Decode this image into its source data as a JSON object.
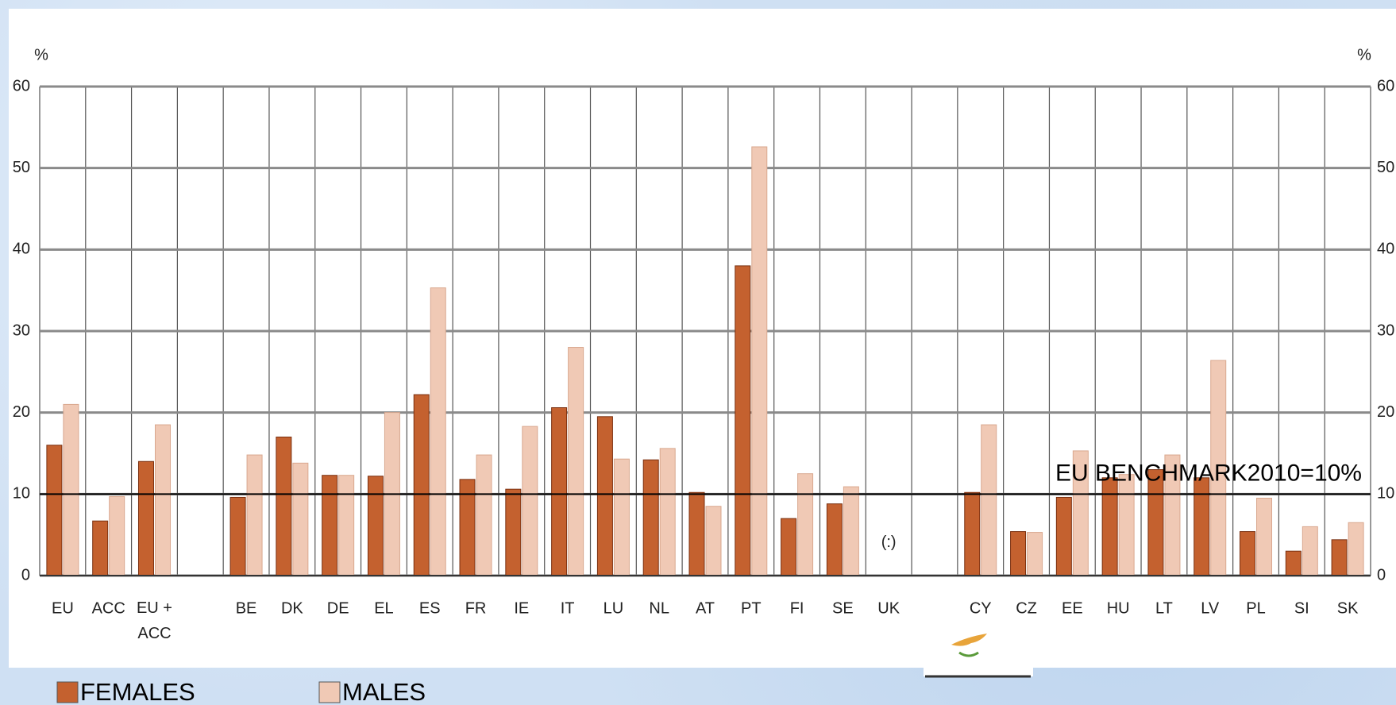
{
  "chart_data": {
    "type": "bar",
    "categories": [
      "EU",
      "ACC",
      "EU + ACC",
      null,
      "BE",
      "DK",
      "DE",
      "EL",
      "ES",
      "FR",
      "IE",
      "IT",
      "LU",
      "NL",
      "AT",
      "PT",
      "FI",
      "SE",
      "UK",
      null,
      "CY",
      "CZ",
      "EE",
      "HU",
      "LT",
      "LV",
      "PL",
      "SI",
      "SK"
    ],
    "series": [
      {
        "name": "FEMALES",
        "color": "#c4612f",
        "values": [
          16,
          6.7,
          14,
          null,
          9.6,
          17,
          12.3,
          12.2,
          22.2,
          11.8,
          10.6,
          20.6,
          19.5,
          14.2,
          10.2,
          38,
          7,
          8.8,
          null,
          null,
          10.2,
          5.4,
          9.6,
          12,
          13,
          12,
          5.4,
          3,
          4.4
        ]
      },
      {
        "name": "MALES",
        "color": "#f0c9b5",
        "values": [
          21,
          9.7,
          18.5,
          null,
          14.8,
          13.8,
          12.3,
          20,
          35.3,
          14.8,
          18.3,
          28,
          14.3,
          15.6,
          8.5,
          52.6,
          12.5,
          10.9,
          null,
          null,
          18.5,
          5.3,
          15.3,
          12.4,
          14.8,
          26.4,
          9.5,
          6,
          6.5
        ]
      }
    ],
    "y_label": "%",
    "ylim": [
      0,
      60
    ],
    "yticks": [
      0,
      10,
      20,
      30,
      40,
      50,
      60
    ],
    "grid": true,
    "benchmark": {
      "value": 10,
      "label": "EU BENCHMARK2010=10%"
    },
    "annotations": [
      {
        "category": "UK",
        "text": "(:)"
      }
    ],
    "legend": "bottom-left"
  }
}
